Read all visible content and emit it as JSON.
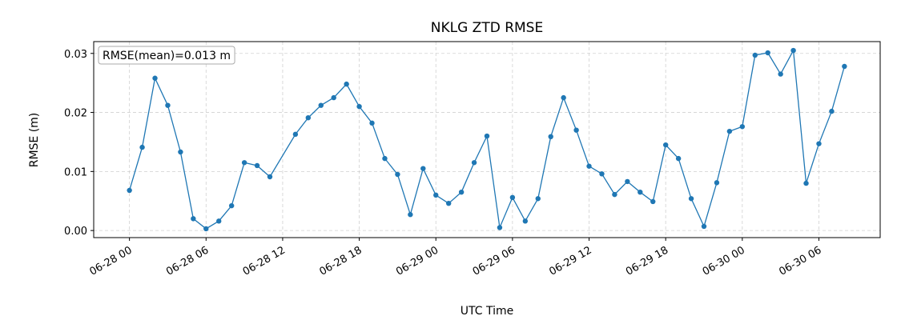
{
  "chart_data": {
    "type": "line",
    "title": "NKLG ZTD RMSE",
    "xlabel": "UTC Time",
    "ylabel": "RMSE (m)",
    "annotation": "RMSE(mean)=0.013 m",
    "x": [
      "06-28 00",
      "06-28 01",
      "06-28 02",
      "06-28 03",
      "06-28 04",
      "06-28 05",
      "06-28 06",
      "06-28 07",
      "06-28 08",
      "06-28 09",
      "06-28 10",
      "06-28 11",
      "06-28 13",
      "06-28 14",
      "06-28 15",
      "06-28 16",
      "06-28 17",
      "06-28 18",
      "06-28 19",
      "06-28 20",
      "06-28 21",
      "06-28 22",
      "06-28 23",
      "06-29 00",
      "06-29 01",
      "06-29 02",
      "06-29 03",
      "06-29 04",
      "06-29 05",
      "06-29 06",
      "06-29 07",
      "06-29 08",
      "06-29 09",
      "06-29 10",
      "06-29 11",
      "06-29 12",
      "06-29 13",
      "06-29 14",
      "06-29 15",
      "06-29 16",
      "06-29 17",
      "06-29 18",
      "06-29 19",
      "06-29 20",
      "06-29 21",
      "06-29 22",
      "06-29 23",
      "06-30 00",
      "06-30 01",
      "06-30 02",
      "06-30 03",
      "06-30 04",
      "06-30 05",
      "06-30 06",
      "06-30 07",
      "06-30 08"
    ],
    "series": [
      {
        "color": "#1f77b4",
        "values": [
          0.0068,
          0.0141,
          0.0258,
          0.0212,
          0.0133,
          0.002,
          0.0003,
          0.0016,
          0.0042,
          0.0115,
          0.011,
          0.0091,
          0.0163,
          0.0191,
          0.0212,
          0.0225,
          0.0248,
          0.021,
          0.0182,
          0.0122,
          0.0095,
          0.0027,
          0.0105,
          0.006,
          0.0046,
          0.0065,
          0.0115,
          0.016,
          0.0005,
          0.0056,
          0.0016,
          0.0054,
          0.0159,
          0.0225,
          0.017,
          0.0109,
          0.0096,
          0.0061,
          0.0083,
          0.0065,
          0.0049,
          0.0145,
          0.0122,
          0.0054,
          0.0007,
          0.0081,
          0.0168,
          0.0176,
          0.0297,
          0.0301,
          0.0265,
          0.0305,
          0.008,
          0.0147,
          0.0202,
          0.0278
        ]
      }
    ],
    "xlim": [
      "06-27 21:12",
      "06-30 10:48"
    ],
    "xticks": [
      "06-28 00",
      "06-28 06",
      "06-28 12",
      "06-28 18",
      "06-29 00",
      "06-29 06",
      "06-29 12",
      "06-29 18",
      "06-30 00",
      "06-30 06"
    ],
    "ylim": [
      -0.0012,
      0.032
    ],
    "yticks": [
      {
        "value": 0,
        "label": "0.00"
      },
      {
        "value": 0.01,
        "label": "0.01"
      },
      {
        "value": 0.02,
        "label": "0.02"
      },
      {
        "value": 0.03,
        "label": "0.03"
      }
    ],
    "grid": true
  }
}
